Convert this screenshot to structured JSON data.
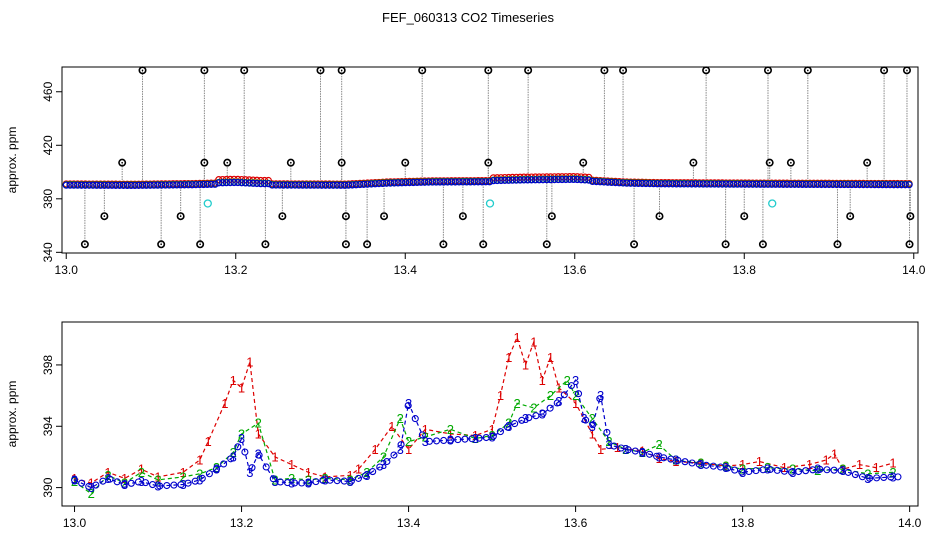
{
  "title": "FEF_060313  CO2 Timeseries",
  "colors": {
    "series1": "#dd0000",
    "series2": "#00aa00",
    "series3": "#0000cc",
    "spike": "#000000",
    "outlier": "#22cccc",
    "line": "#888888"
  },
  "chart_data": [
    {
      "type": "scatter",
      "ylabel": "approx. ppm",
      "xlim": [
        12.995,
        14.005
      ],
      "ylim": [
        339.5,
        478.5
      ],
      "xticks": [
        13.0,
        13.2,
        13.4,
        13.6,
        13.8,
        14.0
      ],
      "xtick_labels": [
        "13.0",
        "13.2",
        "13.4",
        "13.6",
        "13.8",
        "14.0"
      ],
      "yticks": [
        340,
        380,
        420,
        460
      ],
      "ytick_labels": [
        "340",
        "380",
        "420",
        "460"
      ],
      "baseline": {
        "x": [
          13.0,
          13.08,
          13.15,
          13.2,
          13.23,
          13.33,
          13.38,
          13.43,
          13.5,
          13.54,
          13.6,
          13.66,
          13.7,
          13.8,
          13.9,
          13.99
        ],
        "y": [
          390.5,
          390.3,
          390.8,
          391.5,
          390.6,
          390.4,
          392.0,
          392.8,
          393.0,
          393.6,
          394.0,
          392.0,
          391.5,
          391.2,
          391.0,
          390.8
        ]
      },
      "spikes_high": [
        13.09,
        13.163,
        13.21,
        13.3,
        13.325,
        13.42,
        13.498,
        13.545,
        13.635,
        13.657,
        13.755,
        13.828,
        13.875,
        13.965,
        13.992
      ],
      "spikes_low": [
        13.022,
        13.112,
        13.158,
        13.235,
        13.33,
        13.355,
        13.445,
        13.492,
        13.567,
        13.67,
        13.778,
        13.822,
        13.91,
        13.995
      ],
      "spikes_mid_high": [
        13.066,
        13.163,
        13.19,
        13.265,
        13.325,
        13.4,
        13.498,
        13.61,
        13.74,
        13.83,
        13.855,
        13.945
      ],
      "spikes_mid_low": [
        13.045,
        13.135,
        13.255,
        13.33,
        13.375,
        13.468,
        13.573,
        13.7,
        13.8,
        13.925,
        13.996
      ],
      "outliers": {
        "x": [
          13.167,
          13.5,
          13.833
        ],
        "y": [
          376.5,
          376.5,
          376.5
        ]
      }
    },
    {
      "type": "line",
      "ylabel": "approx. ppm",
      "xlim": [
        12.985,
        14.01
      ],
      "ylim": [
        388.8,
        400.8
      ],
      "xticks": [
        13.0,
        13.2,
        13.4,
        13.6,
        13.8,
        14.0
      ],
      "xtick_labels": [
        "13.0",
        "13.2",
        "13.4",
        "13.6",
        "13.8",
        "14.0"
      ],
      "yticks": [
        390,
        394,
        398
      ],
      "ytick_labels": [
        "390",
        "394",
        "398"
      ],
      "series": [
        {
          "name": "1",
          "label": "1",
          "x": [
            13.0,
            13.02,
            13.04,
            13.06,
            13.08,
            13.1,
            13.13,
            13.15,
            13.16,
            13.18,
            13.19,
            13.2,
            13.21,
            13.22,
            13.24,
            13.26,
            13.28,
            13.3,
            13.33,
            13.34,
            13.36,
            13.38,
            13.4,
            13.42,
            13.45,
            13.48,
            13.5,
            13.51,
            13.52,
            13.53,
            13.54,
            13.55,
            13.56,
            13.57,
            13.58,
            13.6,
            13.62,
            13.63,
            13.65,
            13.68,
            13.7,
            13.72,
            13.75,
            13.78,
            13.8,
            13.82,
            13.85,
            13.88,
            13.9,
            13.91,
            13.92,
            13.94,
            13.96,
            13.98
          ],
          "y": [
            390.6,
            390.3,
            391.0,
            390.6,
            391.2,
            390.7,
            391.0,
            391.8,
            393.0,
            395.5,
            397.0,
            396.5,
            398.2,
            393.5,
            392.0,
            391.5,
            391.0,
            390.7,
            390.8,
            391.2,
            392.5,
            394.0,
            392.5,
            393.8,
            393.5,
            393.4,
            393.8,
            396.0,
            398.5,
            399.8,
            398.0,
            399.5,
            397.0,
            398.5,
            396.5,
            395.5,
            393.5,
            392.5,
            392.6,
            392.4,
            391.9,
            391.7,
            391.6,
            391.4,
            391.5,
            391.7,
            391.3,
            391.5,
            391.8,
            392.2,
            391.2,
            391.5,
            391.3,
            391.6
          ]
        },
        {
          "name": "2",
          "label": "2",
          "x": [
            13.0,
            13.02,
            13.04,
            13.06,
            13.08,
            13.1,
            13.13,
            13.15,
            13.17,
            13.19,
            13.2,
            13.22,
            13.24,
            13.26,
            13.28,
            13.3,
            13.33,
            13.35,
            13.37,
            13.39,
            13.4,
            13.42,
            13.45,
            13.48,
            13.5,
            13.52,
            13.53,
            13.55,
            13.57,
            13.59,
            13.6,
            13.62,
            13.64,
            13.66,
            13.68,
            13.7,
            13.72,
            13.75,
            13.78,
            13.8,
            13.83,
            13.86,
            13.89,
            13.92,
            13.95,
            13.98
          ],
          "y": [
            390.4,
            389.6,
            390.8,
            390.3,
            391.0,
            390.5,
            390.7,
            390.9,
            391.3,
            392.3,
            393.5,
            394.2,
            390.5,
            390.6,
            390.5,
            390.6,
            390.5,
            391.0,
            392.0,
            394.5,
            393.0,
            393.3,
            393.8,
            393.2,
            393.4,
            394.2,
            395.5,
            395.2,
            396.0,
            397.0,
            396.0,
            394.5,
            393.0,
            392.5,
            392.3,
            392.8,
            391.8,
            391.6,
            391.4,
            391.2,
            391.3,
            391.2,
            391.1,
            391.2,
            390.9,
            391.0
          ]
        },
        {
          "name": "3",
          "label": "3",
          "x": [
            13.0,
            13.02,
            13.04,
            13.06,
            13.08,
            13.1,
            13.13,
            13.15,
            13.17,
            13.19,
            13.2,
            13.21,
            13.22,
            13.24,
            13.26,
            13.28,
            13.3,
            13.33,
            13.35,
            13.37,
            13.39,
            13.4,
            13.42,
            13.45,
            13.48,
            13.5,
            13.52,
            13.54,
            13.56,
            13.58,
            13.6,
            13.61,
            13.62,
            13.63,
            13.64,
            13.66,
            13.68,
            13.7,
            13.72,
            13.75,
            13.78,
            13.8,
            13.83,
            13.86,
            13.89,
            13.92,
            13.95,
            13.98
          ],
          "y": [
            390.5,
            390.0,
            390.6,
            390.2,
            390.4,
            390.1,
            390.2,
            390.5,
            391.2,
            392.0,
            393.2,
            391.0,
            392.2,
            390.4,
            390.3,
            390.3,
            390.5,
            390.4,
            390.8,
            391.5,
            392.5,
            395.5,
            393.0,
            393.1,
            393.2,
            393.3,
            394.0,
            394.5,
            394.8,
            395.6,
            397.0,
            394.5,
            394.0,
            396.0,
            392.8,
            392.5,
            392.3,
            392.0,
            391.8,
            391.5,
            391.3,
            391.0,
            391.2,
            391.0,
            391.2,
            391.1,
            390.6,
            390.7
          ]
        }
      ]
    }
  ]
}
